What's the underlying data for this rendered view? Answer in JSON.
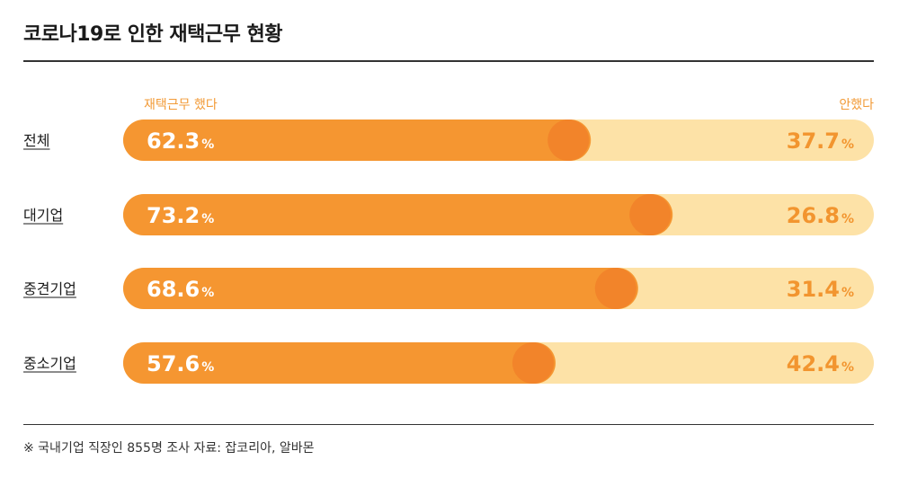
{
  "title": "코로나19로 인한 재택근무 현황",
  "legend": {
    "left": "재택근무 했다",
    "right": "안했다"
  },
  "footnote": "※ 국내기업 직장인 855명 조사 자료: 잡코리아, 알바몬",
  "colors": {
    "did": "#f59631",
    "did_cap": "#f2842a",
    "did_not": "#fde2a7",
    "did_not_text": "#f2952f",
    "legend": "#f29b38"
  },
  "chart_data": {
    "type": "bar",
    "stacked": true,
    "orientation": "horizontal",
    "categories": [
      "전체",
      "대기업",
      "중견기업",
      "중소기업"
    ],
    "series": [
      {
        "name": "재택근무 했다",
        "values": [
          62.3,
          73.2,
          68.6,
          57.6
        ]
      },
      {
        "name": "안했다",
        "values": [
          37.7,
          26.8,
          31.4,
          42.4
        ]
      }
    ],
    "unit": "%",
    "xlim": [
      0,
      100
    ]
  }
}
